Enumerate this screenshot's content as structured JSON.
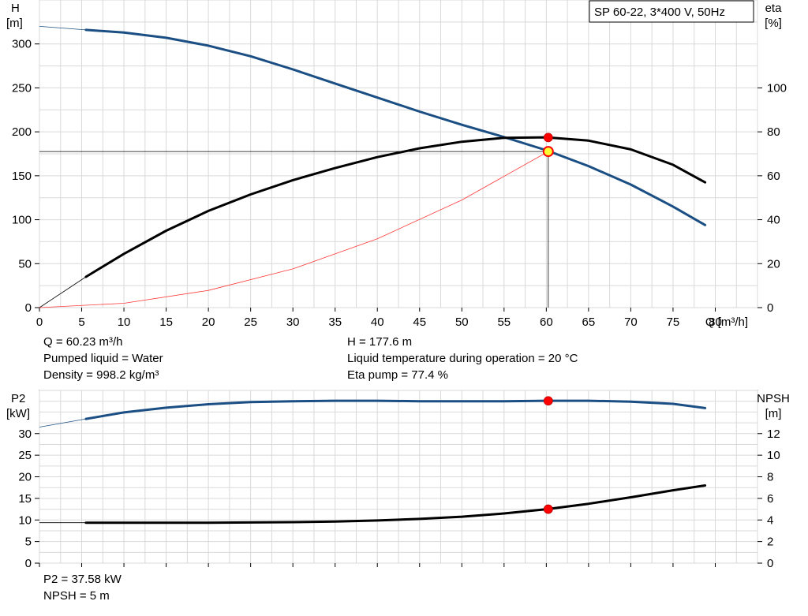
{
  "chart_data": [
    {
      "type": "line",
      "title": "SP 60-22, 3*400 V, 50Hz",
      "xlabel": "Q [m³/h]",
      "ylabel_left": [
        "H",
        "[m]"
      ],
      "ylabel_right": [
        "eta",
        "[%]"
      ],
      "xlim": [
        0,
        85
      ],
      "x_ticks": [
        0,
        5,
        10,
        15,
        20,
        25,
        30,
        35,
        40,
        45,
        50,
        55,
        60,
        65,
        70,
        75,
        80
      ],
      "ylim_left": [
        0,
        350
      ],
      "y_ticks_left": [
        0,
        50,
        100,
        150,
        200,
        250,
        300
      ],
      "ylim_right": [
        0,
        140
      ],
      "y_ticks_right": [
        0,
        20,
        40,
        60,
        80,
        100
      ],
      "grid": true,
      "series": [
        {
          "name": "H",
          "axis": "left",
          "color": "#1b4f84",
          "extrapolated_x": [
            0,
            5.5
          ],
          "extrapolated_y": [
            320,
            316
          ],
          "x": [
            5.5,
            10,
            15,
            20,
            25,
            30,
            35,
            40,
            45,
            50,
            55,
            60,
            65,
            70,
            75,
            78.8
          ],
          "y": [
            316,
            313,
            307,
            298,
            286,
            271,
            255,
            239,
            223,
            208,
            194,
            179,
            161,
            140,
            115,
            94
          ]
        },
        {
          "name": "eta",
          "axis": "right",
          "color": "#000000",
          "extrapolated_x": [
            0,
            5.5
          ],
          "extrapolated_y": [
            0,
            14
          ],
          "x": [
            5.5,
            10,
            15,
            20,
            25,
            30,
            35,
            40,
            45,
            50,
            55,
            60,
            65,
            70,
            75,
            78.8
          ],
          "y": [
            14,
            24.5,
            35,
            44,
            51.5,
            58,
            63.5,
            68.5,
            72.5,
            75.5,
            77.3,
            77.5,
            76,
            72,
            65,
            57
          ]
        },
        {
          "name": "system curve",
          "axis": "left",
          "color": "#ff3b3b",
          "x": [
            0,
            10,
            20,
            30,
            40,
            50,
            60.23
          ],
          "y": [
            0,
            4.9,
            19.6,
            44.1,
            78.3,
            122.4,
            177.6
          ]
        }
      ],
      "operating_point": {
        "x": 60.23,
        "y": 177.6
      },
      "eta_point": {
        "x": 60.23,
        "y": 77.4
      }
    },
    {
      "type": "line",
      "ylabel_left": [
        "P2",
        "[kW]"
      ],
      "ylabel_right": [
        "NPSH",
        "[m]"
      ],
      "xlim": [
        0,
        85
      ],
      "x_ticks": [
        0,
        5,
        10,
        15,
        20,
        25,
        30,
        35,
        40,
        45,
        50,
        55,
        60,
        65,
        70,
        75,
        80
      ],
      "ylim_left": [
        0,
        40
      ],
      "y_ticks_left": [
        0,
        5,
        10,
        15,
        20,
        25,
        30
      ],
      "ylim_right": [
        0,
        16
      ],
      "y_ticks_right": [
        0,
        2,
        4,
        6,
        8,
        10,
        12
      ],
      "grid": true,
      "series": [
        {
          "name": "P2",
          "axis": "left",
          "color": "#1b4f84",
          "extrapolated_x": [
            0,
            5.5
          ],
          "extrapolated_y": [
            31.5,
            33.4
          ],
          "x": [
            5.5,
            10,
            15,
            20,
            25,
            30,
            35,
            40,
            45,
            50,
            55,
            60,
            65,
            70,
            75,
            78.8
          ],
          "y": [
            33.4,
            34.9,
            36.0,
            36.8,
            37.3,
            37.5,
            37.6,
            37.6,
            37.5,
            37.5,
            37.5,
            37.6,
            37.6,
            37.4,
            36.9,
            35.9
          ]
        },
        {
          "name": "NPSH",
          "axis": "right",
          "color": "#000000",
          "extrapolated_x": [
            0,
            5.5
          ],
          "extrapolated_y": [
            3.75,
            3.75
          ],
          "x": [
            5.5,
            10,
            15,
            20,
            25,
            30,
            35,
            40,
            45,
            50,
            55,
            60,
            65,
            70,
            75,
            78.8
          ],
          "y": [
            3.75,
            3.75,
            3.75,
            3.75,
            3.77,
            3.8,
            3.85,
            3.95,
            4.1,
            4.3,
            4.6,
            5.0,
            5.5,
            6.1,
            6.75,
            7.2
          ]
        }
      ],
      "points": [
        {
          "axis": "left",
          "x": 60.23,
          "y": 37.58
        },
        {
          "axis": "right",
          "x": 60.23,
          "y": 5
        }
      ]
    }
  ],
  "info": {
    "q": "Q = 60.23 m³/h",
    "liquid": "Pumped liquid = Water",
    "density": "Density = 998.2 kg/m³",
    "h": "H = 177.6 m",
    "temperature": "Liquid temperature during operation = 20 °C",
    "eta": "Eta pump = 77.4 %",
    "p2": "P2 = 37.58 kW",
    "npsh": "NPSH = 5 m"
  },
  "colors": {
    "h_curve": "#1b4f84",
    "eta_curve": "#000000",
    "system_curve": "#ff3b3b",
    "duty_point": "#ff0000",
    "operating_point_fill": "#ffff33",
    "grid": "#d9d9d9"
  }
}
